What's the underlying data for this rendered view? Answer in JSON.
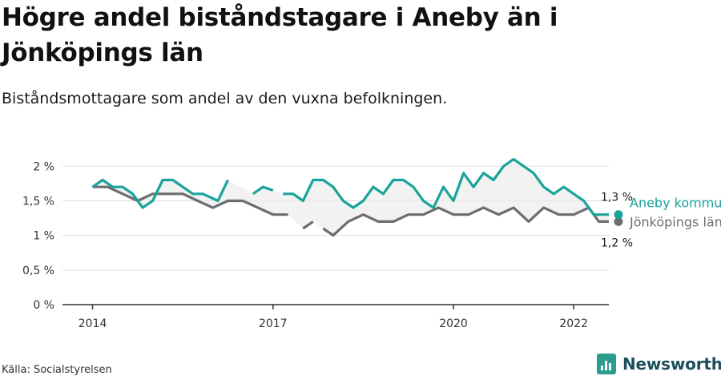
{
  "header": {
    "title": "Högre andel biståndstagare i Aneby än i Jönköpings län",
    "subtitle": "Biståndsmottagare som andel av den vuxna befolkningen."
  },
  "footer": {
    "source": "Källa: Socialstyrelsen",
    "brand": "Newsworthy"
  },
  "colors": {
    "aneby": "#1aa39b",
    "lan": "#6d6d71",
    "band": "#ececec",
    "grid": "#dddddd",
    "axis": "#333333",
    "brand": "#1b4f5c"
  },
  "chart_data": {
    "type": "line",
    "x_unit": "month",
    "x_ticks": [
      "2014",
      "2017",
      "2020",
      "2022"
    ],
    "y_ticks": [
      "0 %",
      "0,5 %",
      "1 %",
      "1,5 %",
      "2 %"
    ],
    "y_tick_values": [
      0,
      0.5,
      1,
      1.5,
      2
    ],
    "ylim": [
      0,
      2.2
    ],
    "xlim": [
      "2013-07",
      "2022-08"
    ],
    "grid": "horizontal",
    "series": [
      {
        "name": "Aneby kommun",
        "end_label": "1,3 %",
        "points": [
          [
            "2014-01",
            1.7
          ],
          [
            "2014-03",
            1.8
          ],
          [
            "2014-05",
            1.7
          ],
          [
            "2014-07",
            1.7
          ],
          [
            "2014-09",
            1.6
          ],
          [
            "2014-11",
            1.4
          ],
          [
            "2015-01",
            1.5
          ],
          [
            "2015-03",
            1.8
          ],
          [
            "2015-05",
            1.8
          ],
          [
            "2015-07",
            1.7
          ],
          [
            "2015-09",
            1.6
          ],
          [
            "2015-11",
            1.6
          ],
          [
            "2016-02",
            1.5
          ],
          [
            "2016-04",
            1.8
          ],
          null,
          [
            "2016-09",
            1.6
          ],
          [
            "2016-11",
            1.7
          ],
          [
            "2017-01",
            1.65
          ],
          null,
          [
            "2017-03",
            1.6
          ],
          [
            "2017-05",
            1.6
          ],
          [
            "2017-07",
            1.5
          ],
          [
            "2017-09",
            1.8
          ],
          [
            "2017-11",
            1.8
          ],
          [
            "2018-01",
            1.7
          ],
          [
            "2018-03",
            1.5
          ],
          [
            "2018-05",
            1.4
          ],
          [
            "2018-07",
            1.5
          ],
          [
            "2018-09",
            1.7
          ],
          [
            "2018-11",
            1.6
          ],
          [
            "2019-01",
            1.8
          ],
          [
            "2019-03",
            1.8
          ],
          [
            "2019-05",
            1.7
          ],
          [
            "2019-07",
            1.5
          ],
          [
            "2019-09",
            1.4
          ],
          [
            "2019-11",
            1.7
          ],
          [
            "2020-01",
            1.5
          ],
          [
            "2020-03",
            1.9
          ],
          [
            "2020-05",
            1.7
          ],
          [
            "2020-07",
            1.9
          ],
          [
            "2020-09",
            1.8
          ],
          [
            "2020-11",
            2.0
          ],
          [
            "2021-01",
            2.1
          ],
          [
            "2021-03",
            2.0
          ],
          [
            "2021-05",
            1.9
          ],
          [
            "2021-07",
            1.7
          ],
          [
            "2021-09",
            1.6
          ],
          [
            "2021-11",
            1.7
          ],
          [
            "2022-01",
            1.6
          ],
          [
            "2022-03",
            1.5
          ],
          [
            "2022-05",
            1.3
          ],
          [
            "2022-07",
            1.3
          ],
          [
            "2022-08",
            1.3
          ]
        ]
      },
      {
        "name": "Jönköpings län",
        "end_label": "1,2 %",
        "points": [
          [
            "2014-01",
            1.7
          ],
          [
            "2014-04",
            1.7
          ],
          [
            "2014-07",
            1.6
          ],
          [
            "2014-10",
            1.5
          ],
          [
            "2015-01",
            1.6
          ],
          [
            "2015-04",
            1.6
          ],
          [
            "2015-07",
            1.6
          ],
          [
            "2015-10",
            1.5
          ],
          [
            "2016-01",
            1.4
          ],
          [
            "2016-04",
            1.5
          ],
          [
            "2016-07",
            1.5
          ],
          [
            "2016-10",
            1.4
          ],
          [
            "2017-01",
            1.3
          ],
          [
            "2017-04",
            1.3
          ],
          null,
          [
            "2017-07",
            1.1
          ],
          [
            "2017-09",
            1.2
          ],
          null,
          [
            "2017-11",
            1.1
          ],
          [
            "2018-01",
            1.0
          ],
          [
            "2018-04",
            1.2
          ],
          [
            "2018-07",
            1.3
          ],
          [
            "2018-10",
            1.2
          ],
          [
            "2019-01",
            1.2
          ],
          [
            "2019-04",
            1.3
          ],
          [
            "2019-07",
            1.3
          ],
          [
            "2019-10",
            1.4
          ],
          [
            "2020-01",
            1.3
          ],
          [
            "2020-04",
            1.3
          ],
          [
            "2020-07",
            1.4
          ],
          [
            "2020-10",
            1.3
          ],
          [
            "2021-01",
            1.4
          ],
          [
            "2021-04",
            1.2
          ],
          [
            "2021-07",
            1.4
          ],
          [
            "2021-10",
            1.3
          ],
          [
            "2022-01",
            1.3
          ],
          [
            "2022-04",
            1.4
          ],
          [
            "2022-06",
            1.2
          ],
          [
            "2022-08",
            1.2
          ]
        ]
      }
    ]
  }
}
